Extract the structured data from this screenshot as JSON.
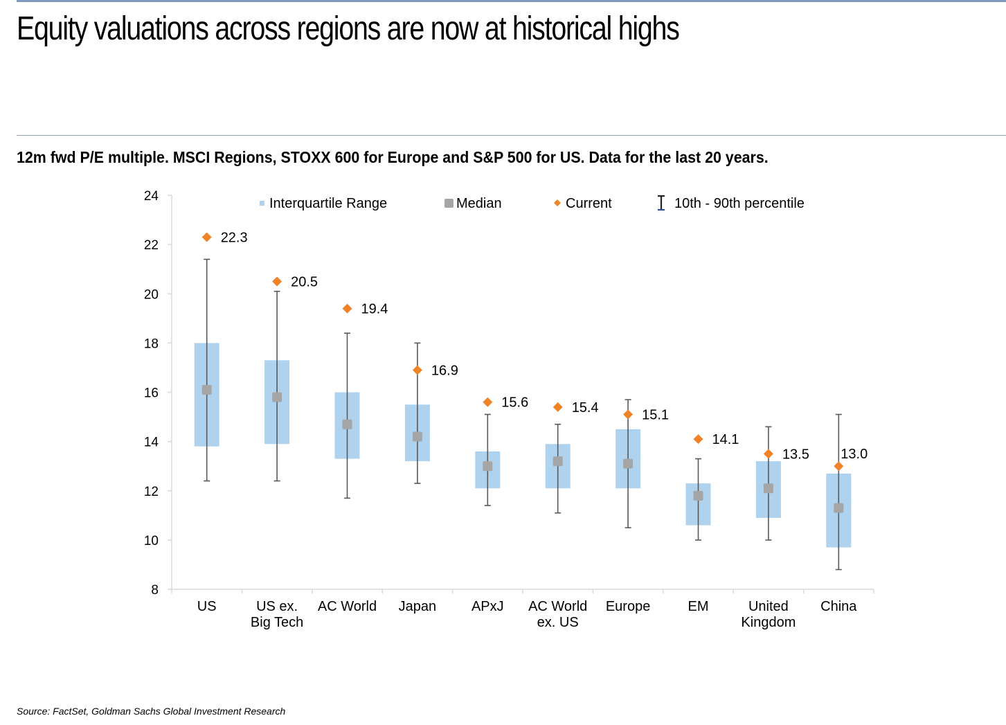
{
  "page": {
    "title": "Equity valuations across regions are now at historical highs",
    "subtitle": "12m fwd P/E multiple. MSCI Regions, STOXX 600 for Europe and S&P 500 for US. Data for the last 20 years.",
    "source": "Source: FactSet, Goldman Sachs Global Investment Research"
  },
  "colors": {
    "iqr": "#afd3ef",
    "median": "#a5a5a5",
    "current": "#f08228",
    "whisker": "#595959",
    "axis": "#d9d9d9",
    "legend_whisker_base": "#2e4f8f"
  },
  "chart_data": {
    "type": "box",
    "title": "12m fwd P/E multiple",
    "xlabel": "",
    "ylabel": "",
    "ylim": [
      8,
      24
    ],
    "yticks": [
      8,
      10,
      12,
      14,
      16,
      18,
      20,
      22,
      24
    ],
    "grid": false,
    "legend_position": "top",
    "legend": [
      {
        "key": "iqr",
        "label": "Interquartile Range"
      },
      {
        "key": "median",
        "label": "Median"
      },
      {
        "key": "current",
        "label": "Current"
      },
      {
        "key": "whisker",
        "label": "10th - 90th percentile"
      }
    ],
    "categories": [
      [
        "US"
      ],
      [
        "US ex.",
        "Big Tech"
      ],
      [
        "AC World"
      ],
      [
        "Japan"
      ],
      [
        "APxJ"
      ],
      [
        "AC World",
        "ex. US"
      ],
      [
        "Europe"
      ],
      [
        "EM"
      ],
      [
        "United",
        "Kingdom"
      ],
      [
        "China"
      ]
    ],
    "series": [
      {
        "name": "10th percentile",
        "values": [
          12.4,
          12.4,
          11.7,
          12.3,
          11.4,
          11.1,
          10.5,
          10.0,
          10.0,
          8.8
        ]
      },
      {
        "name": "25th percentile",
        "values": [
          13.8,
          13.9,
          13.3,
          13.2,
          12.1,
          12.1,
          12.1,
          10.6,
          10.9,
          9.7
        ]
      },
      {
        "name": "Median",
        "values": [
          16.1,
          15.8,
          14.7,
          14.2,
          13.0,
          13.2,
          13.1,
          11.8,
          12.1,
          11.3
        ]
      },
      {
        "name": "75th percentile",
        "values": [
          18.0,
          17.3,
          16.0,
          15.5,
          13.6,
          13.9,
          14.5,
          12.3,
          13.2,
          12.7
        ]
      },
      {
        "name": "90th percentile",
        "values": [
          21.4,
          20.1,
          18.4,
          18.0,
          15.1,
          14.7,
          15.7,
          13.3,
          14.6,
          15.1
        ]
      },
      {
        "name": "Current",
        "values": [
          22.3,
          20.5,
          19.4,
          16.9,
          15.6,
          15.4,
          15.1,
          14.1,
          13.5,
          13.0
        ]
      }
    ],
    "current_labels": [
      "22.3",
      "20.5",
      "19.4",
      "16.9",
      "15.6",
      "15.4",
      "15.1",
      "14.1",
      "13.5",
      "13.0"
    ]
  }
}
